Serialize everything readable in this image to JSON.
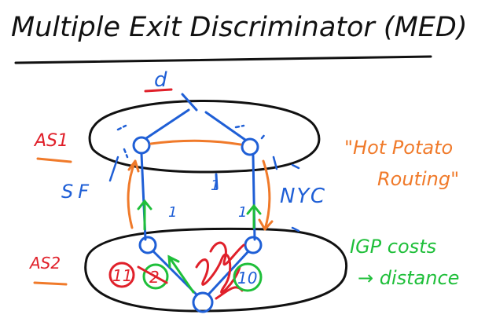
{
  "title": "Multiple Exit Discriminator (MED)",
  "labels": {
    "destination": "d",
    "as1": "AS1",
    "as2": "AS2",
    "sf": "SF",
    "nyc": "NYC",
    "hot_potato_line1": "\"Hot Potato",
    "hot_potato_line2": "Routing\"",
    "igp_line1": "IGP costs",
    "igp_line2": "→ distance",
    "link_cost_left": "1",
    "link_cost_right": "1",
    "link_cost_mid": "1",
    "cost_11": "11",
    "cost_10": "10",
    "cost_2": "2"
  },
  "colors": {
    "ink": "#111111",
    "blue": "#1f5fd6",
    "orange": "#f07a2a",
    "red": "#e0202a",
    "green": "#1fbf3a"
  }
}
